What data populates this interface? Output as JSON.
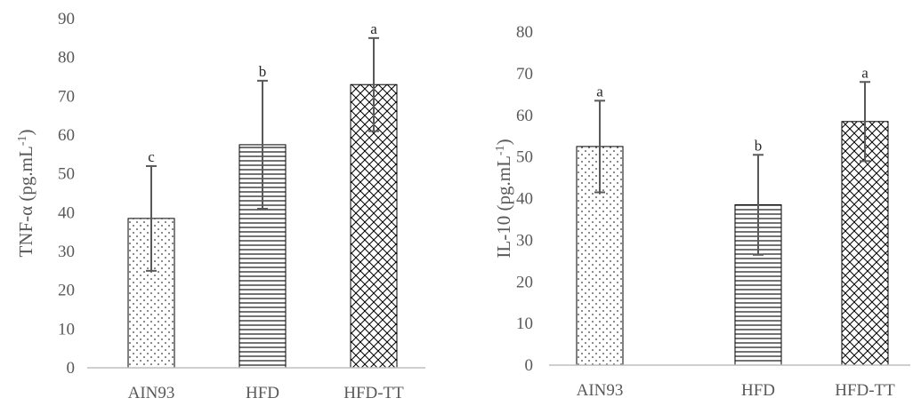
{
  "colors": {
    "bar_fill": "#ffffff",
    "bar_outline": "#000000",
    "pattern": "#000000",
    "error_bar": "#595959",
    "axis": "#bfbfbf",
    "text": "#595959"
  },
  "chart_data": [
    {
      "type": "bar",
      "categories": [
        "AIN93",
        "HFD",
        "HFD-TT"
      ],
      "values": [
        38.5,
        57.5,
        73
      ],
      "errors": [
        13.5,
        16.5,
        12
      ],
      "significance": [
        "c",
        "b",
        "a"
      ],
      "patterns": [
        "dots",
        "horizontal-lines",
        "crosshatch"
      ],
      "ylabel": "TNF-α (pg.mL",
      "ylabel_superscript": "-1",
      "ylabel_suffix": ")",
      "ylim": [
        0,
        90
      ],
      "yticks": [
        "0",
        "10",
        "20",
        "30",
        "40",
        "50",
        "60",
        "70",
        "80",
        "90"
      ],
      "grid": false,
      "legend": "none"
    },
    {
      "type": "bar",
      "categories": [
        "AIN93",
        "HFD",
        "HFD-TT"
      ],
      "values": [
        52.5,
        38.5,
        58.5
      ],
      "errors": [
        11,
        12,
        9.5
      ],
      "significance": [
        "a",
        "b",
        "a"
      ],
      "patterns": [
        "dots",
        "horizontal-lines",
        "crosshatch"
      ],
      "ylabel": "IL-10 (pg.mL",
      "ylabel_superscript": "-1",
      "ylabel_suffix": ")",
      "ylim": [
        0,
        80
      ],
      "yticks": [
        "0",
        "10",
        "20",
        "30",
        "40",
        "50",
        "60",
        "70",
        "80"
      ],
      "grid": false,
      "legend": "none"
    }
  ]
}
